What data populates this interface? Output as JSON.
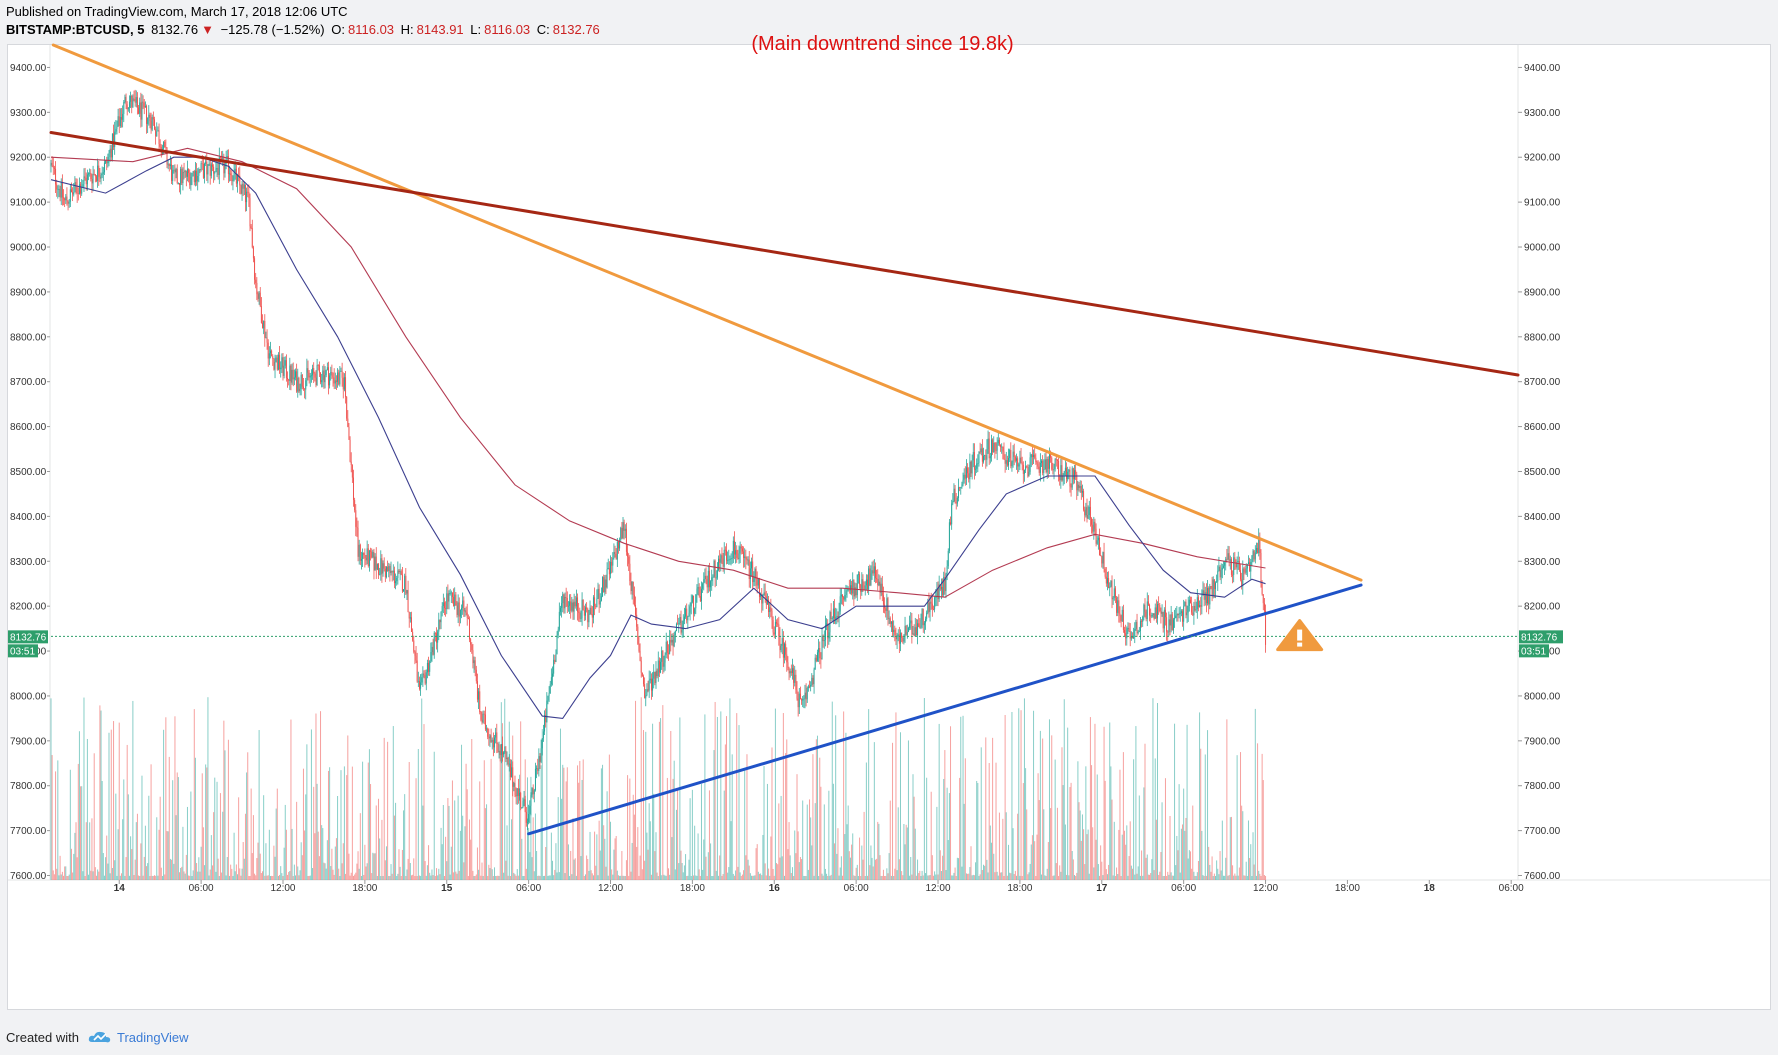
{
  "header": {
    "published_text": "Published on TradingView.com, March 17, 2018 12:06 UTC",
    "symbol": "BITSTAMP:BTCUSD, 5",
    "last": "8132.76",
    "change": "−125.78 (−1.52%)",
    "o_label": "O:",
    "o_value": "8116.03",
    "h_label": "H:",
    "h_value": "8143.91",
    "l_label": "L:",
    "l_value": "8116.03",
    "c_label": "C:",
    "c_value": "8132.76",
    "down_arrow": "▼"
  },
  "footer": {
    "created_with": "Created with",
    "brand": "TradingView"
  },
  "colors": {
    "up": "#26a69a",
    "down": "#ef5350",
    "orange_trend": "#f09a3e",
    "red_trend": "#a52714",
    "blue_trend": "#1f52c7",
    "ma_fast": "#3c3f8f",
    "ma_slow": "#b33b52",
    "annotation": "#dd1111",
    "last_price": "#2e9e6b",
    "warning": "#f09a3e"
  },
  "chart_data": {
    "type": "candlestick",
    "symbol": "BITSTAMP:BTCUSD",
    "interval": "5",
    "annotation": "(Main downtrend since 19.8k)",
    "warning_icon": "warning-triangle-icon",
    "y_axis_ticks": [
      "9400.00",
      "9300.00",
      "9200.00",
      "9100.00",
      "9000.00",
      "8900.00",
      "8800.00",
      "8700.00",
      "8600.00",
      "8500.00",
      "8400.00",
      "8300.00",
      "8200.00",
      "8100.00",
      "8000.00",
      "7900.00",
      "7800.00",
      "7700.00",
      "7600.00"
    ],
    "y_tick_values": [
      9400,
      9300,
      9200,
      9100,
      9000,
      8900,
      8800,
      8700,
      8600,
      8500,
      8400,
      8300,
      8200,
      8100,
      8000,
      7900,
      7800,
      7700,
      7600
    ],
    "ylim": [
      7590,
      9450
    ],
    "x_tick_labels": [
      {
        "label": "14",
        "x": "2018-03-14 00:00",
        "bold": true
      },
      {
        "label": "06:00",
        "x": "2018-03-14 06:00",
        "bold": false
      },
      {
        "label": "12:00",
        "x": "2018-03-14 12:00",
        "bold": false
      },
      {
        "label": "18:00",
        "x": "2018-03-14 18:00",
        "bold": false
      },
      {
        "label": "15",
        "x": "2018-03-15 00:00",
        "bold": true
      },
      {
        "label": "06:00",
        "x": "2018-03-15 06:00",
        "bold": false
      },
      {
        "label": "12:00",
        "x": "2018-03-15 12:00",
        "bold": false
      },
      {
        "label": "18:00",
        "x": "2018-03-15 18:00",
        "bold": false
      },
      {
        "label": "16",
        "x": "2018-03-16 00:00",
        "bold": true
      },
      {
        "label": "06:00",
        "x": "2018-03-16 06:00",
        "bold": false
      },
      {
        "label": "12:00",
        "x": "2018-03-16 12:00",
        "bold": false
      },
      {
        "label": "18:00",
        "x": "2018-03-16 18:00",
        "bold": false
      },
      {
        "label": "17",
        "x": "2018-03-17 00:00",
        "bold": true
      },
      {
        "label": "06:00",
        "x": "2018-03-17 06:00",
        "bold": false
      },
      {
        "label": "12:00",
        "x": "2018-03-17 12:00",
        "bold": false
      },
      {
        "label": "18:00",
        "x": "2018-03-17 18:00",
        "bold": false
      },
      {
        "label": "18",
        "x": "2018-03-18 00:00",
        "bold": true
      },
      {
        "label": "06:00",
        "x": "2018-03-18 06:00",
        "bold": false
      }
    ],
    "xlim": [
      "2018-03-13 19:00",
      "2018-03-18 06:30"
    ],
    "last_price": "8132.76",
    "countdown": "03:51",
    "close_path": [
      [
        "2018-03-13 19:00",
        9180
      ],
      [
        "2018-03-13 20:00",
        9100
      ],
      [
        "2018-03-13 21:30",
        9150
      ],
      [
        "2018-03-13 23:00",
        9180
      ],
      [
        "2018-03-14 00:30",
        9330
      ],
      [
        "2018-03-14 02:30",
        9280
      ],
      [
        "2018-03-14 04:00",
        9150
      ],
      [
        "2018-03-14 06:00",
        9170
      ],
      [
        "2018-03-14 08:00",
        9180
      ],
      [
        "2018-03-14 09:30",
        9100
      ],
      [
        "2018-03-14 10:00",
        8920
      ],
      [
        "2018-03-14 11:00",
        8760
      ],
      [
        "2018-03-14 13:00",
        8700
      ],
      [
        "2018-03-14 15:00",
        8720
      ],
      [
        "2018-03-14 16:30",
        8700
      ],
      [
        "2018-03-14 17:30",
        8320
      ],
      [
        "2018-03-14 19:30",
        8280
      ],
      [
        "2018-03-14 21:00",
        8250
      ],
      [
        "2018-03-14 22:00",
        8000
      ],
      [
        "2018-03-15 00:00",
        8220
      ],
      [
        "2018-03-15 01:30",
        8180
      ],
      [
        "2018-03-15 02:30",
        7950
      ],
      [
        "2018-03-15 04:00",
        7880
      ],
      [
        "2018-03-15 05:30",
        7760
      ],
      [
        "2018-03-15 06:00",
        7730
      ],
      [
        "2018-03-15 07:00",
        7900
      ],
      [
        "2018-03-15 08:30",
        8220
      ],
      [
        "2018-03-15 10:30",
        8180
      ],
      [
        "2018-03-15 12:00",
        8280
      ],
      [
        "2018-03-15 13:00",
        8380
      ],
      [
        "2018-03-15 14:30",
        8000
      ],
      [
        "2018-03-15 16:00",
        8100
      ],
      [
        "2018-03-15 18:00",
        8200
      ],
      [
        "2018-03-15 20:00",
        8300
      ],
      [
        "2018-03-15 21:00",
        8330
      ],
      [
        "2018-03-15 22:30",
        8270
      ],
      [
        "2018-03-16 01:00",
        8080
      ],
      [
        "2018-03-16 02:00",
        7970
      ],
      [
        "2018-03-16 04:00",
        8160
      ],
      [
        "2018-03-16 05:30",
        8240
      ],
      [
        "2018-03-16 07:30",
        8270
      ],
      [
        "2018-03-16 09:00",
        8120
      ],
      [
        "2018-03-16 10:30",
        8160
      ],
      [
        "2018-03-16 12:30",
        8250
      ],
      [
        "2018-03-16 13:00",
        8430
      ],
      [
        "2018-03-16 14:30",
        8520
      ],
      [
        "2018-03-16 16:00",
        8560
      ],
      [
        "2018-03-16 18:00",
        8510
      ],
      [
        "2018-03-16 20:00",
        8520
      ],
      [
        "2018-03-16 22:00",
        8480
      ],
      [
        "2018-03-16 23:30",
        8370
      ],
      [
        "2018-03-17 00:30",
        8250
      ],
      [
        "2018-03-17 02:00",
        8130
      ],
      [
        "2018-03-17 03:30",
        8200
      ],
      [
        "2018-03-17 05:00",
        8160
      ],
      [
        "2018-03-17 06:30",
        8200
      ],
      [
        "2018-03-17 08:00",
        8230
      ],
      [
        "2018-03-17 09:00",
        8310
      ],
      [
        "2018-03-17 10:30",
        8260
      ],
      [
        "2018-03-17 11:30",
        8330
      ],
      [
        "2018-03-17 12:00",
        8133
      ]
    ],
    "ma_fast": [
      [
        "2018-03-13 19:00",
        9150
      ],
      [
        "2018-03-13 23:00",
        9120
      ],
      [
        "2018-03-14 02:00",
        9170
      ],
      [
        "2018-03-14 04:00",
        9200
      ],
      [
        "2018-03-14 06:00",
        9200
      ],
      [
        "2018-03-14 08:00",
        9180
      ],
      [
        "2018-03-14 10:00",
        9120
      ],
      [
        "2018-03-14 13:00",
        8950
      ],
      [
        "2018-03-14 16:00",
        8800
      ],
      [
        "2018-03-14 19:00",
        8620
      ],
      [
        "2018-03-14 22:00",
        8420
      ],
      [
        "2018-03-15 01:00",
        8270
      ],
      [
        "2018-03-15 04:00",
        8090
      ],
      [
        "2018-03-15 07:00",
        7955
      ],
      [
        "2018-03-15 08:30",
        7950
      ],
      [
        "2018-03-15 10:30",
        8040
      ],
      [
        "2018-03-15 12:00",
        8090
      ],
      [
        "2018-03-15 13:30",
        8180
      ],
      [
        "2018-03-15 15:00",
        8160
      ],
      [
        "2018-03-15 17:30",
        8150
      ],
      [
        "2018-03-15 20:00",
        8170
      ],
      [
        "2018-03-15 22:30",
        8240
      ],
      [
        "2018-03-16 01:00",
        8170
      ],
      [
        "2018-03-16 03:30",
        8150
      ],
      [
        "2018-03-16 06:00",
        8200
      ],
      [
        "2018-03-16 08:30",
        8200
      ],
      [
        "2018-03-16 11:00",
        8200
      ],
      [
        "2018-03-16 12:30",
        8260
      ],
      [
        "2018-03-16 15:00",
        8370
      ],
      [
        "2018-03-16 17:00",
        8450
      ],
      [
        "2018-03-16 20:00",
        8490
      ],
      [
        "2018-03-16 23:30",
        8490
      ],
      [
        "2018-03-17 02:00",
        8380
      ],
      [
        "2018-03-17 04:30",
        8280
      ],
      [
        "2018-03-17 06:30",
        8230
      ],
      [
        "2018-03-17 09:00",
        8220
      ],
      [
        "2018-03-17 11:00",
        8260
      ],
      [
        "2018-03-17 12:00",
        8250
      ]
    ],
    "ma_slow": [
      [
        "2018-03-13 19:00",
        9200
      ],
      [
        "2018-03-14 01:00",
        9190
      ],
      [
        "2018-03-14 05:00",
        9220
      ],
      [
        "2018-03-14 09:00",
        9190
      ],
      [
        "2018-03-14 13:00",
        9130
      ],
      [
        "2018-03-14 17:00",
        9000
      ],
      [
        "2018-03-14 21:00",
        8800
      ],
      [
        "2018-03-15 01:00",
        8620
      ],
      [
        "2018-03-15 05:00",
        8470
      ],
      [
        "2018-03-15 09:00",
        8390
      ],
      [
        "2018-03-15 13:00",
        8340
      ],
      [
        "2018-03-15 17:00",
        8300
      ],
      [
        "2018-03-15 21:00",
        8280
      ],
      [
        "2018-03-16 01:00",
        8240
      ],
      [
        "2018-03-16 05:00",
        8240
      ],
      [
        "2018-03-16 09:00",
        8230
      ],
      [
        "2018-03-16 12:30",
        8220
      ],
      [
        "2018-03-16 16:00",
        8280
      ],
      [
        "2018-03-16 20:00",
        8330
      ],
      [
        "2018-03-16 23:30",
        8360
      ],
      [
        "2018-03-17 03:00",
        8340
      ],
      [
        "2018-03-17 07:00",
        8310
      ],
      [
        "2018-03-17 10:00",
        8295
      ],
      [
        "2018-03-17 12:00",
        8285
      ]
    ],
    "trendlines": [
      {
        "name": "orange",
        "from": [
          "2018-03-13 19:10",
          9450
        ],
        "to": [
          "2018-03-17 19:00",
          8258
        ]
      },
      {
        "name": "red",
        "from": [
          "2018-03-13 19:00",
          9255
        ],
        "to": [
          "2018-03-18 06:30",
          8715
        ]
      },
      {
        "name": "blue",
        "from": [
          "2018-03-15 06:00",
          7693
        ],
        "to": [
          "2018-03-17 19:00",
          8247
        ]
      }
    ]
  }
}
